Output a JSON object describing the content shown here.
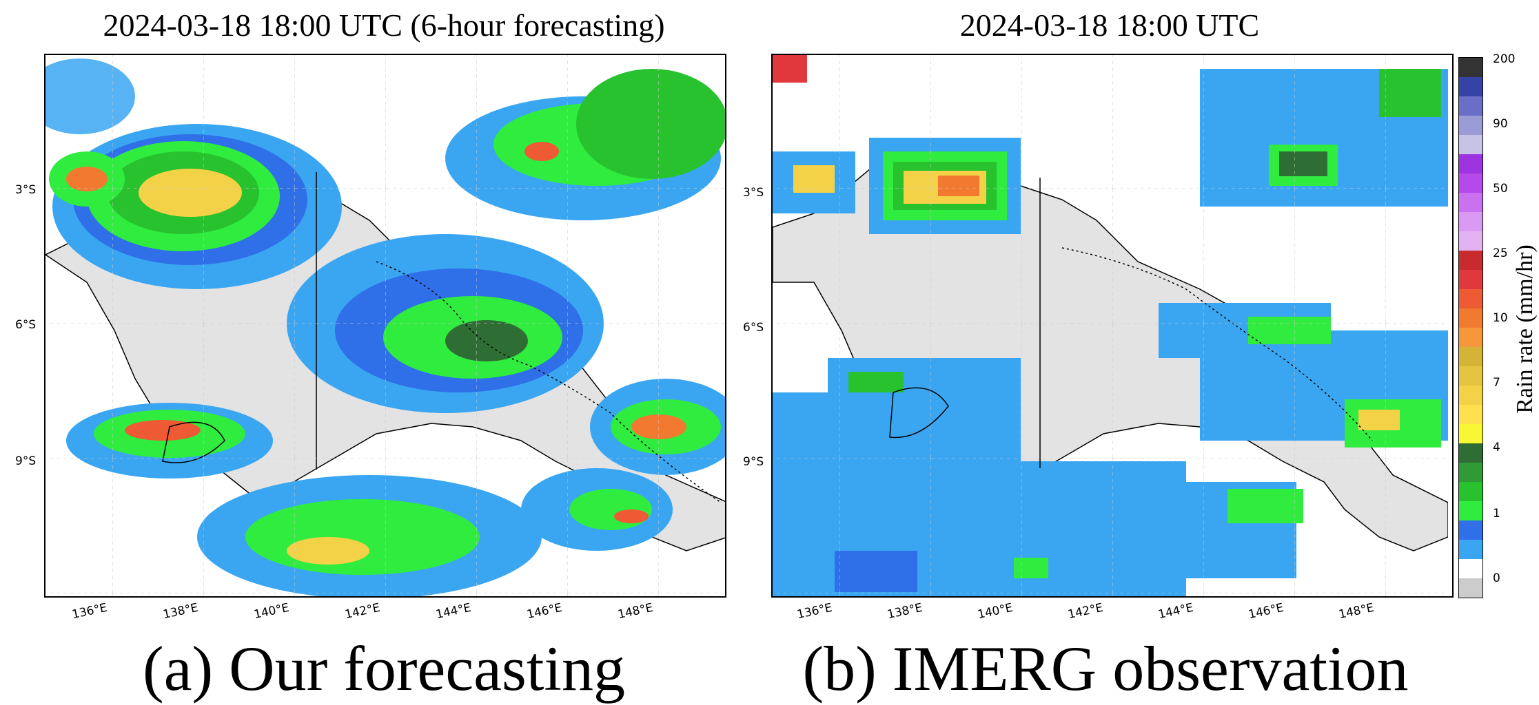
{
  "panels": [
    {
      "title": "2024-03-18 18:00 UTC (6-hour forecasting)",
      "caption": "(a) Our forecasting"
    },
    {
      "title": "2024-03-18 18:00 UTC",
      "caption": "(b) IMERG observation"
    }
  ],
  "axes": {
    "lat_ticks": [
      "3°S",
      "6°S",
      "9°S"
    ],
    "lon_ticks": [
      "136°E",
      "138°E",
      "140°E",
      "142°E",
      "144°E",
      "146°E",
      "148°E"
    ]
  },
  "colorbar": {
    "title": "Rain rate (mm/hr)",
    "tick_labels": [
      "200",
      "90",
      "50",
      "25",
      "10",
      "7",
      "4",
      "1",
      "0"
    ],
    "colors": [
      "#cccccc",
      "#ffffff",
      "#3aa6f2",
      "#2f6fe8",
      "#2fec3f",
      "#27c22e",
      "#2f9a36",
      "#2e6e35",
      "#f7f734",
      "#ffe14d",
      "#f4d247",
      "#e5c440",
      "#d4b437",
      "#f5973a",
      "#f27a30",
      "#ee5a34",
      "#e0383c",
      "#c92a2e",
      "#e3b2f2",
      "#d89af2",
      "#c971ee",
      "#b549ea",
      "#9d34e0",
      "#c7c3e6",
      "#9b9cd6",
      "#6a6ec6",
      "#3543a6",
      "#333333"
    ]
  }
}
